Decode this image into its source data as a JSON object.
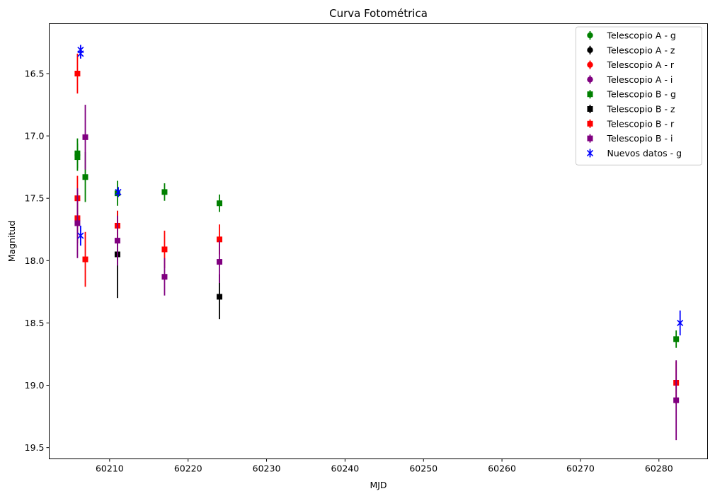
{
  "chart_data": {
    "type": "scatter",
    "title": "Curva Fotométrica",
    "xlabel": "MJD",
    "ylabel": "Magnitud",
    "xlim": [
      60202.3,
      60286.2
    ],
    "ylim": [
      19.59,
      16.1
    ],
    "y_inverted": true,
    "xticks": [
      "60210",
      "60220",
      "60230",
      "60240",
      "60250",
      "60260",
      "60270",
      "60280"
    ],
    "yticks": [
      "16.5",
      "17.0",
      "17.5",
      "18.0",
      "18.5",
      "19.0",
      "19.5"
    ],
    "grid": false,
    "legend_position": "top-right",
    "series": [
      {
        "name": "Telescopio A - g",
        "color": "#008000",
        "marker": "circle",
        "points": []
      },
      {
        "name": "Telescopio A - z",
        "color": "#000000",
        "marker": "circle",
        "points": []
      },
      {
        "name": "Telescopio A - r",
        "color": "#ff0000",
        "marker": "circle",
        "points": []
      },
      {
        "name": "Telescopio A - i",
        "color": "#800080",
        "marker": "circle",
        "points": []
      },
      {
        "name": "Telescopio B - g",
        "color": "#008000",
        "marker": "square",
        "points": [
          {
            "x": 60205.9,
            "y": 17.14,
            "err": 0.12
          },
          {
            "x": 60205.9,
            "y": 17.17,
            "err": 0.11
          },
          {
            "x": 60206.9,
            "y": 17.33,
            "err": 0.2
          },
          {
            "x": 60211.0,
            "y": 17.46,
            "err": 0.1
          },
          {
            "x": 60217.0,
            "y": 17.45,
            "err": 0.07
          },
          {
            "x": 60224.0,
            "y": 17.54,
            "err": 0.07
          },
          {
            "x": 60282.2,
            "y": 18.63,
            "err": 0.07
          }
        ]
      },
      {
        "name": "Telescopio B - z",
        "color": "#000000",
        "marker": "square",
        "points": [
          {
            "x": 60211.0,
            "y": 17.95,
            "err": 0.35
          },
          {
            "x": 60224.0,
            "y": 18.29,
            "err": 0.18
          }
        ]
      },
      {
        "name": "Telescopio B - r",
        "color": "#ff0000",
        "marker": "square",
        "points": [
          {
            "x": 60205.9,
            "y": 16.5,
            "err": 0.16
          },
          {
            "x": 60205.9,
            "y": 17.5,
            "err": 0.18
          },
          {
            "x": 60205.9,
            "y": 17.66,
            "err": 0.2
          },
          {
            "x": 60206.9,
            "y": 17.99,
            "err": 0.22
          },
          {
            "x": 60211.0,
            "y": 17.72,
            "err": 0.12
          },
          {
            "x": 60217.0,
            "y": 17.91,
            "err": 0.15
          },
          {
            "x": 60224.0,
            "y": 17.83,
            "err": 0.12
          },
          {
            "x": 60282.2,
            "y": 18.98,
            "err": 0.17
          }
        ]
      },
      {
        "name": "Telescopio B - i",
        "color": "#800080",
        "marker": "square",
        "points": [
          {
            "x": 60205.9,
            "y": 17.7,
            "err": 0.28
          },
          {
            "x": 60206.9,
            "y": 17.01,
            "err": 0.26
          },
          {
            "x": 60211.0,
            "y": 17.84,
            "err": 0.2
          },
          {
            "x": 60217.0,
            "y": 18.13,
            "err": 0.15
          },
          {
            "x": 60224.0,
            "y": 18.01,
            "err": 0.17
          },
          {
            "x": 60282.2,
            "y": 19.12,
            "err": 0.32
          }
        ]
      },
      {
        "name": "Nuevos datos - g",
        "color": "#0000ff",
        "marker": "x",
        "points": [
          {
            "x": 60206.3,
            "y": 16.31,
            "err": 0.04
          },
          {
            "x": 60206.3,
            "y": 16.34,
            "err": 0.04
          },
          {
            "x": 60206.3,
            "y": 17.8,
            "err": 0.08
          },
          {
            "x": 60211.1,
            "y": 17.45,
            "err": 0.04
          },
          {
            "x": 60282.7,
            "y": 18.5,
            "err": 0.1
          }
        ]
      }
    ]
  }
}
